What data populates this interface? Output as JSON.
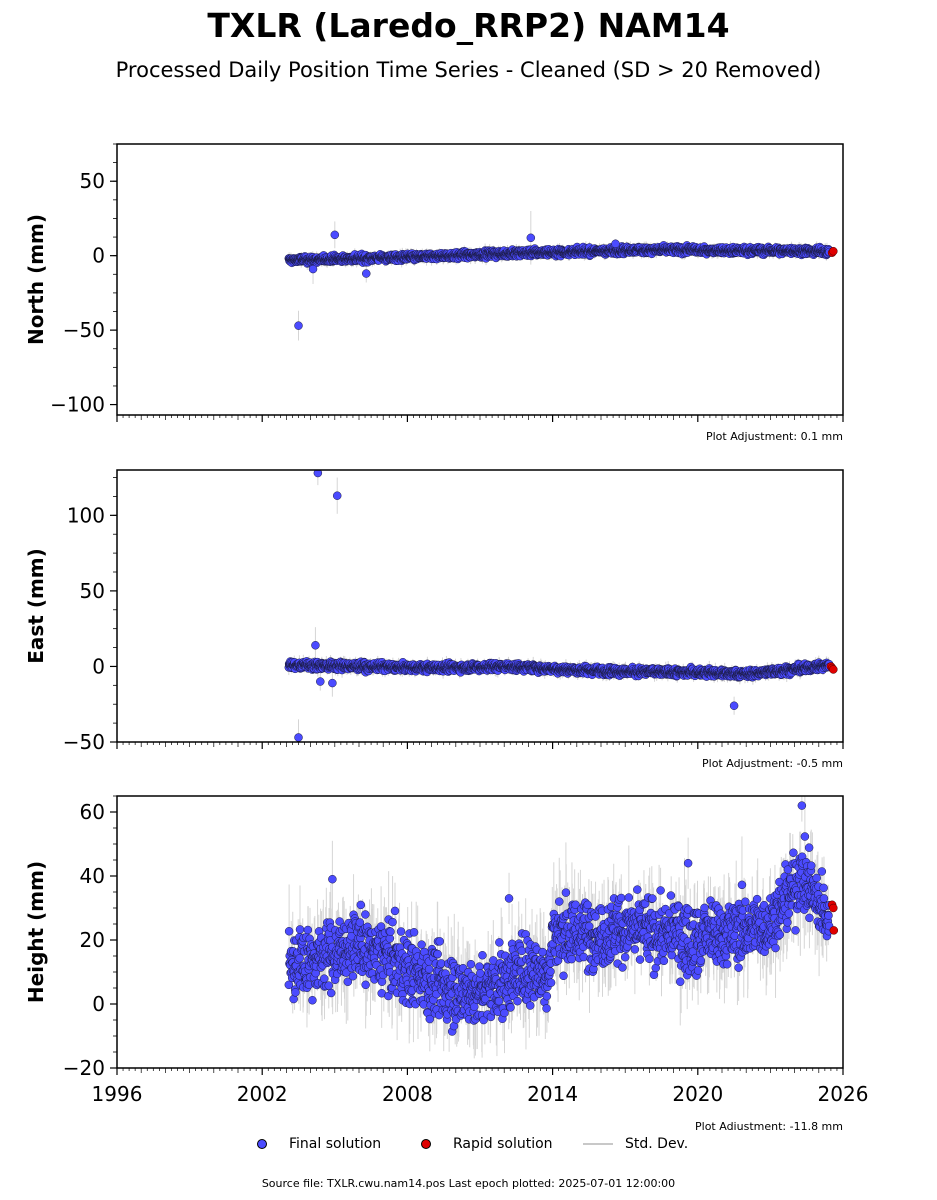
{
  "title": "TXLR (Laredo_RRP2) NAM14",
  "subtitle": "Processed Daily Position Time Series - Cleaned (SD > 20 Removed)",
  "chart_data": {
    "type": "scatter",
    "x_axis": {
      "range": [
        1996,
        2026
      ],
      "tick_labels": [
        "1996",
        "2002",
        "2008",
        "2014",
        "2020",
        "2026"
      ],
      "tick_values": [
        1996,
        2002,
        2008,
        2014,
        2020,
        2026
      ]
    },
    "colors": {
      "final": "#4b4bff",
      "rapid": "#e00000",
      "stddev": "#b4b4b4"
    },
    "panels": [
      {
        "id": "north",
        "ylabel": "North (mm)",
        "ylim": [
          -107,
          75
        ],
        "yticks": [
          50,
          0,
          -50,
          -100
        ],
        "ytick_labels": [
          "50",
          "0",
          "−50",
          "−100"
        ],
        "adjustment": "Plot Adjustment: 0.1 mm",
        "trend": [
          [
            2003.1,
            -3
          ],
          [
            2008,
            -1
          ],
          [
            2013,
            2
          ],
          [
            2018,
            4
          ],
          [
            2025.6,
            3
          ]
        ],
        "scatter_sd": 1.6,
        "outliers": [
          [
            2003.5,
            -47,
            10
          ],
          [
            2005.0,
            14,
            9
          ],
          [
            2006.3,
            -12,
            6
          ],
          [
            2004.1,
            -9,
            10
          ],
          [
            2013.1,
            12,
            18
          ],
          [
            2016.6,
            8,
            3
          ]
        ],
        "rapid": [
          [
            2025.55,
            2
          ],
          [
            2025.6,
            3
          ]
        ]
      },
      {
        "id": "east",
        "ylabel": "East (mm)",
        "ylim": [
          -50,
          130
        ],
        "yticks": [
          100,
          50,
          0,
          -50
        ],
        "ytick_labels": [
          "100",
          "50",
          "0",
          "−50"
        ],
        "adjustment": "Plot Adjustment: -0.5 mm",
        "trend": [
          [
            2003.1,
            1
          ],
          [
            2009,
            -1
          ],
          [
            2012,
            0
          ],
          [
            2016,
            -3
          ],
          [
            2020,
            -4
          ],
          [
            2022,
            -5
          ],
          [
            2024,
            -2
          ],
          [
            2025.6,
            1
          ]
        ],
        "scatter_sd": 1.8,
        "outliers": [
          [
            2004.3,
            128,
            8
          ],
          [
            2005.1,
            113,
            12
          ],
          [
            2003.5,
            -47,
            12
          ],
          [
            2004.2,
            14,
            12
          ],
          [
            2004.4,
            -10,
            6
          ],
          [
            2004.9,
            -11,
            9
          ],
          [
            2021.5,
            -26,
            6
          ]
        ],
        "rapid": [
          [
            2025.5,
            0
          ],
          [
            2025.55,
            -1
          ],
          [
            2025.6,
            -2
          ]
        ]
      },
      {
        "id": "height",
        "ylabel": "Height (mm)",
        "ylim": [
          -20,
          65
        ],
        "yticks": [
          60,
          40,
          20,
          0,
          -20
        ],
        "ytick_labels": [
          "60",
          "40",
          "20",
          "0",
          "−20"
        ],
        "adjustment": "Plot Adjustment: -11.8 mm",
        "trend": [
          [
            2003.1,
            12
          ],
          [
            2006,
            18
          ],
          [
            2008,
            12
          ],
          [
            2009.5,
            5
          ],
          [
            2011,
            3
          ],
          [
            2012.5,
            10
          ],
          [
            2013.9,
            10
          ],
          [
            2014,
            22
          ],
          [
            2018,
            23
          ],
          [
            2020,
            20
          ],
          [
            2023,
            25
          ],
          [
            2024.3,
            40
          ],
          [
            2025.2,
            30
          ],
          [
            2025.6,
            28
          ]
        ],
        "scatter_sd": 7.5,
        "outliers": [
          [
            2024.3,
            62,
            5
          ],
          [
            2004.9,
            39,
            12
          ],
          [
            2019.6,
            44,
            8
          ],
          [
            2012.2,
            33,
            8
          ]
        ],
        "rapid": [
          [
            2025.55,
            31
          ],
          [
            2025.6,
            30
          ],
          [
            2025.62,
            23
          ]
        ]
      }
    ],
    "legend": [
      {
        "label": "Final solution",
        "kind": "marker",
        "color": "#4b4bff"
      },
      {
        "label": "Rapid solution",
        "kind": "marker",
        "color": "#e00000"
      },
      {
        "label": "Std. Dev.",
        "kind": "line",
        "color": "#c8c8c8"
      }
    ]
  },
  "source": "Source file: TXLR.cwu.nam14.pos  Last epoch plotted: 2025-07-01 12:00:00"
}
